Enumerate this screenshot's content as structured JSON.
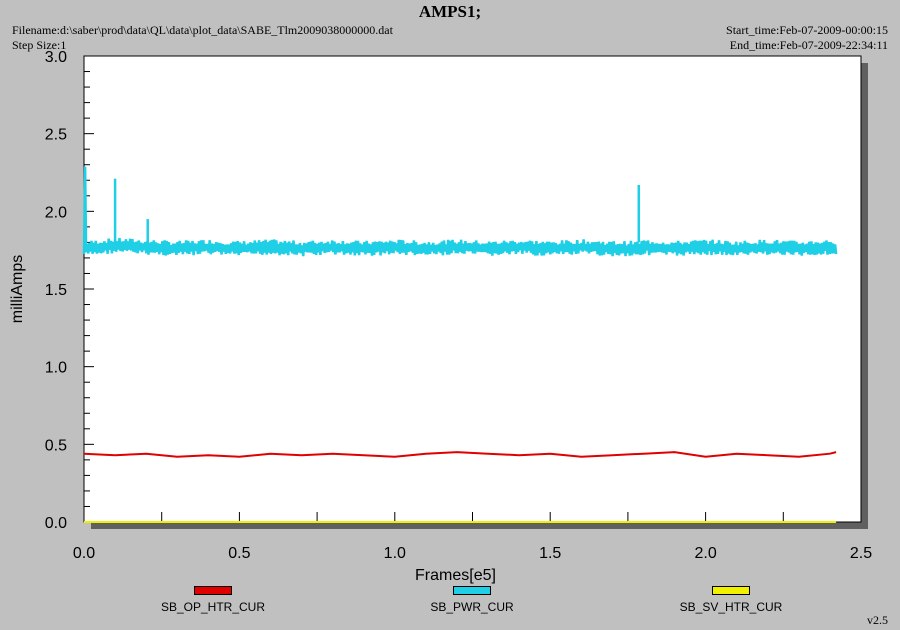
{
  "header": {
    "title": "AMPS1;",
    "filename": "Filename:d:\\saber\\prod\\data\\QL\\data\\plot_data\\SABE_Tlm2009038000000.dat",
    "step_size": "Step Size:1",
    "start_time": "Start_time:Feb-07-2009-00:00:15",
    "end_time": "End_time:Feb-07-2009-22:34:11"
  },
  "footer": {
    "version": "v2.5"
  },
  "chart_data": {
    "type": "line",
    "title": "AMPS1;",
    "xlabel": "Frames[e5]",
    "ylabel": "milliAmps",
    "xlim": [
      0,
      2.5
    ],
    "ylim": [
      0,
      3.0
    ],
    "x_ticks": [
      "0.0",
      "0.5",
      "1.0",
      "1.5",
      "2.0",
      "2.5"
    ],
    "y_ticks": [
      "0.0",
      "0.5",
      "1.0",
      "1.5",
      "2.0",
      "2.5",
      "3.0"
    ],
    "grid": false,
    "legend_position": "bottom",
    "series": [
      {
        "name": "SB_OP_HTR_CUR",
        "color": "#e00000",
        "x": [
          0.0,
          0.1,
          0.2,
          0.3,
          0.4,
          0.5,
          0.6,
          0.7,
          0.8,
          0.9,
          1.0,
          1.1,
          1.2,
          1.3,
          1.4,
          1.5,
          1.6,
          1.7,
          1.8,
          1.9,
          2.0,
          2.1,
          2.2,
          2.3,
          2.4,
          2.42
        ],
        "y": [
          0.44,
          0.43,
          0.44,
          0.42,
          0.43,
          0.42,
          0.44,
          0.43,
          0.44,
          0.43,
          0.42,
          0.44,
          0.45,
          0.44,
          0.43,
          0.44,
          0.42,
          0.43,
          0.44,
          0.45,
          0.42,
          0.44,
          0.43,
          0.42,
          0.44,
          0.45
        ]
      },
      {
        "name": "SB_PWR_CUR",
        "color": "#1ecfe6",
        "x": [
          0.0,
          0.003,
          0.006,
          0.1,
          0.2,
          0.3,
          0.4,
          0.5,
          0.6,
          0.7,
          0.8,
          0.9,
          1.0,
          1.1,
          1.2,
          1.3,
          1.4,
          1.5,
          1.6,
          1.7,
          1.785,
          1.8,
          1.9,
          2.0,
          2.1,
          2.2,
          2.3,
          2.4,
          2.42
        ],
        "y": [
          1.76,
          2.25,
          1.76,
          1.78,
          1.77,
          1.76,
          1.77,
          1.76,
          1.77,
          1.76,
          1.77,
          1.76,
          1.77,
          1.76,
          1.77,
          1.76,
          1.77,
          1.76,
          1.77,
          1.76,
          1.76,
          1.77,
          1.76,
          1.77,
          1.76,
          1.77,
          1.76,
          1.77,
          1.76
        ],
        "band": 0.05,
        "spikes": [
          {
            "x": 0.1,
            "y": 2.21
          },
          {
            "x": 0.205,
            "y": 1.95
          },
          {
            "x": 1.785,
            "y": 2.17
          }
        ]
      },
      {
        "name": "SB_SV_HTR_CUR",
        "color": "#f0f000",
        "x": [
          0.0,
          2.42
        ],
        "y": [
          0.0,
          0.0
        ]
      }
    ]
  }
}
